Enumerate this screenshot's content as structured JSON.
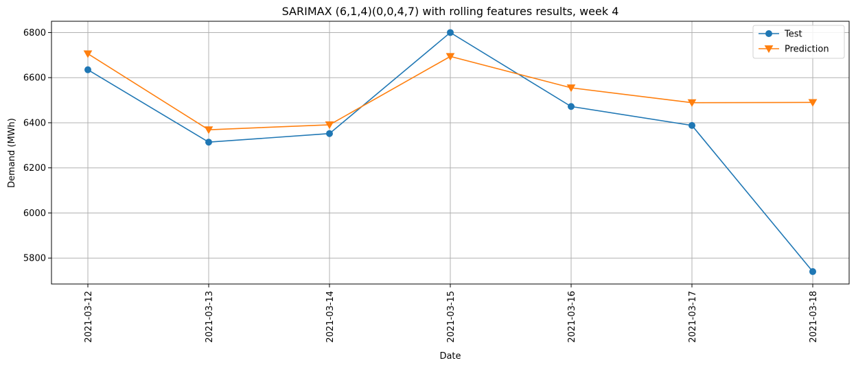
{
  "chart_data": {
    "type": "line",
    "title": "SARIMAX (6,1,4)(0,0,4,7) with rolling features results, week 4",
    "xlabel": "Date",
    "ylabel": "Demand (MWh)",
    "categories": [
      "2021-03-12",
      "2021-03-13",
      "2021-03-14",
      "2021-03-15",
      "2021-03-16",
      "2021-03-17",
      "2021-03-18"
    ],
    "ylim": [
      5685,
      6850
    ],
    "yticks": [
      5800,
      6000,
      6200,
      6400,
      6600,
      6800
    ],
    "grid": true,
    "legend_position": "top-right",
    "series": [
      {
        "name": "Test",
        "color": "#1f77b4",
        "marker": "circle",
        "values": [
          6635,
          6314,
          6352,
          6800,
          6472,
          6388,
          5740
        ]
      },
      {
        "name": "Prediction",
        "color": "#ff7f0e",
        "marker": "triangle-down",
        "values": [
          6706,
          6369,
          6391,
          6694,
          6555,
          6489,
          6490
        ]
      }
    ]
  }
}
